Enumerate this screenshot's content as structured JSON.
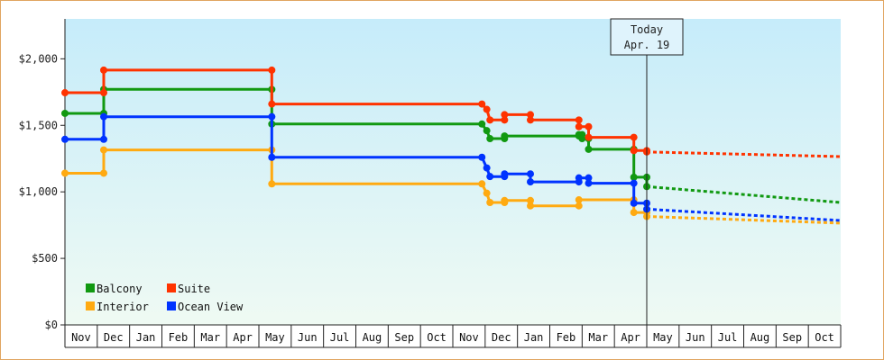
{
  "chart_data": {
    "type": "line",
    "subtype": "step",
    "x_categories": [
      "Nov",
      "Dec",
      "Jan",
      "Feb",
      "Mar",
      "Apr",
      "May",
      "Jun",
      "Jul",
      "Aug",
      "Sep",
      "Oct",
      "Nov",
      "Dec",
      "Jan",
      "Feb",
      "Mar",
      "Apr",
      "May",
      "Jun",
      "Jul",
      "Aug",
      "Sep",
      "Oct"
    ],
    "ylim": [
      0,
      2300
    ],
    "yticks": [
      0,
      500,
      1000,
      1500,
      2000
    ],
    "ytick_labels": [
      "$0",
      "$500",
      "$1,000",
      "$1,500",
      "$2,000"
    ],
    "grid": false,
    "legend_position": "bottom-left",
    "today_marker": {
      "line1": "Today",
      "line2": "Apr. 19",
      "x": 18.0
    },
    "series": [
      {
        "name": "Balcony",
        "color": "#119911",
        "points": [
          [
            0,
            1590
          ],
          [
            1.2,
            1590
          ],
          [
            1.2,
            1770
          ],
          [
            6.4,
            1770
          ],
          [
            6.4,
            1510
          ],
          [
            12.9,
            1510
          ],
          [
            13.05,
            1460
          ],
          [
            13.15,
            1400
          ],
          [
            13.6,
            1400
          ],
          [
            13.6,
            1420
          ],
          [
            15.9,
            1420
          ],
          [
            15.9,
            1430
          ],
          [
            16,
            1430
          ],
          [
            16,
            1400
          ],
          [
            16.2,
            1400
          ],
          [
            16.2,
            1320
          ],
          [
            17.6,
            1320
          ],
          [
            17.6,
            1110
          ],
          [
            18,
            1110
          ],
          [
            18,
            1040
          ]
        ],
        "forecast": [
          [
            18,
            1040
          ],
          [
            24,
            920
          ]
        ]
      },
      {
        "name": "Suite",
        "color": "#ff3300",
        "points": [
          [
            0,
            1745
          ],
          [
            1.2,
            1745
          ],
          [
            1.2,
            1915
          ],
          [
            6.4,
            1915
          ],
          [
            6.4,
            1660
          ],
          [
            12.9,
            1660
          ],
          [
            13.05,
            1620
          ],
          [
            13.15,
            1540
          ],
          [
            13.6,
            1540
          ],
          [
            13.6,
            1580
          ],
          [
            14.4,
            1580
          ],
          [
            14.4,
            1540
          ],
          [
            15.9,
            1540
          ],
          [
            15.9,
            1490
          ],
          [
            16.2,
            1490
          ],
          [
            16.2,
            1410
          ],
          [
            17.6,
            1410
          ],
          [
            17.6,
            1310
          ],
          [
            18,
            1310
          ],
          [
            18,
            1300
          ]
        ],
        "forecast": [
          [
            18,
            1300
          ],
          [
            24,
            1265
          ]
        ]
      },
      {
        "name": "Interior",
        "color": "#ffaa11",
        "points": [
          [
            0,
            1140
          ],
          [
            1.2,
            1140
          ],
          [
            1.2,
            1315
          ],
          [
            6.4,
            1315
          ],
          [
            6.4,
            1060
          ],
          [
            12.9,
            1060
          ],
          [
            13.05,
            990
          ],
          [
            13.15,
            920
          ],
          [
            13.6,
            920
          ],
          [
            13.6,
            935
          ],
          [
            14.4,
            935
          ],
          [
            14.4,
            895
          ],
          [
            15.9,
            895
          ],
          [
            15.9,
            940
          ],
          [
            17.6,
            940
          ],
          [
            17.6,
            845
          ],
          [
            18,
            845
          ],
          [
            18,
            815
          ]
        ],
        "forecast": [
          [
            18,
            815
          ],
          [
            24,
            765
          ]
        ]
      },
      {
        "name": "Ocean View",
        "color": "#0033ff",
        "points": [
          [
            0,
            1395
          ],
          [
            1.2,
            1395
          ],
          [
            1.2,
            1565
          ],
          [
            6.4,
            1565
          ],
          [
            6.4,
            1260
          ],
          [
            12.9,
            1260
          ],
          [
            13.05,
            1180
          ],
          [
            13.15,
            1115
          ],
          [
            13.6,
            1115
          ],
          [
            13.6,
            1135
          ],
          [
            14.4,
            1135
          ],
          [
            14.4,
            1075
          ],
          [
            15.9,
            1075
          ],
          [
            15.9,
            1105
          ],
          [
            16.2,
            1105
          ],
          [
            16.2,
            1065
          ],
          [
            17.6,
            1065
          ],
          [
            17.6,
            915
          ],
          [
            18,
            915
          ],
          [
            18,
            870
          ]
        ],
        "forecast": [
          [
            18,
            870
          ],
          [
            24,
            785
          ]
        ]
      }
    ]
  }
}
